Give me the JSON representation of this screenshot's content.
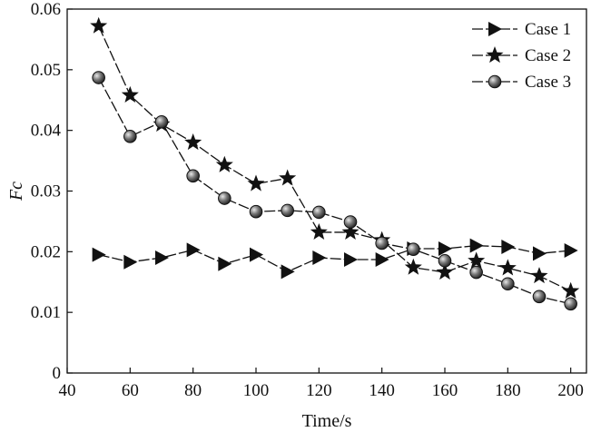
{
  "chart_data": {
    "type": "line",
    "title": "",
    "xlabel": "Time/s",
    "ylabel": "Fc",
    "xlim": [
      40,
      205
    ],
    "ylim": [
      0,
      0.06
    ],
    "x_ticks": [
      40,
      60,
      80,
      100,
      120,
      140,
      160,
      180,
      200
    ],
    "x_tick_labels": [
      "40",
      "60",
      "80",
      "100",
      "120",
      "140",
      "160",
      "180",
      "200"
    ],
    "y_ticks": [
      0,
      0.01,
      0.02,
      0.03,
      0.04,
      0.05,
      0.06
    ],
    "y_tick_labels": [
      "0",
      "0.01",
      "0.02",
      "0.03",
      "0.04",
      "0.05",
      "0.06"
    ],
    "grid": false,
    "legend_position": "top-right",
    "line_style": "dashed",
    "x": [
      50,
      60,
      70,
      80,
      90,
      100,
      110,
      120,
      130,
      140,
      150,
      160,
      170,
      180,
      190,
      200
    ],
    "series": [
      {
        "name": "Case 1",
        "marker": "triangle-right",
        "values": [
          0.0195,
          0.0183,
          0.019,
          0.0203,
          0.018,
          0.0195,
          0.0167,
          0.019,
          0.0187,
          0.0187,
          0.0205,
          0.0205,
          0.021,
          0.0208,
          0.0197,
          0.0202
        ]
      },
      {
        "name": "Case 2",
        "marker": "star",
        "values": [
          0.0572,
          0.0458,
          0.041,
          0.038,
          0.0343,
          0.0312,
          0.0321,
          0.0232,
          0.0232,
          0.0219,
          0.0174,
          0.0166,
          0.0185,
          0.0173,
          0.016,
          0.0135
        ]
      },
      {
        "name": "Case 3",
        "marker": "sphere",
        "values": [
          0.0487,
          0.039,
          0.0414,
          0.0325,
          0.0288,
          0.0266,
          0.0268,
          0.0265,
          0.0249,
          0.0214,
          0.0204,
          0.0185,
          0.0166,
          0.0147,
          0.0126,
          0.0114
        ]
      }
    ]
  },
  "colors": {
    "ink": "#111111",
    "sphere_highlight": "#e8e8e8",
    "background": "#ffffff"
  }
}
